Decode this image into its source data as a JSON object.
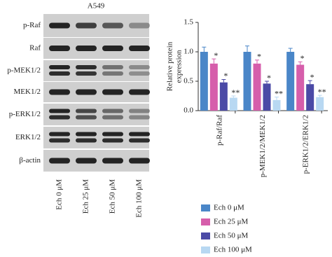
{
  "blot": {
    "title": "A549",
    "rows": [
      "p-Raf",
      "Raf",
      "p-MEK1/2",
      "MEK1/2",
      "p-ERK1/2",
      "ERK1/2",
      "β-actin"
    ],
    "lanes": [
      "Ech 0 μM",
      "Ech 25 μM",
      "Ech 50 μM",
      "Ech 100 μM"
    ]
  },
  "chart_data": {
    "type": "bar",
    "ylabel": [
      "Relative protein",
      "expression"
    ],
    "categories": [
      "p-Raf/Raf",
      "p-MEK1/2/MEK1/2",
      "p-ERK1/2/ERK1/2"
    ],
    "series": [
      {
        "name": "Ech 0 μM",
        "color": "#4a86c8",
        "values": [
          1.0,
          1.0,
          1.0
        ],
        "errors": [
          0.08,
          0.1,
          0.06
        ]
      },
      {
        "name": "Ech 25 μM",
        "color": "#d65eab",
        "values": [
          0.8,
          0.8,
          0.78
        ],
        "errors": [
          0.08,
          0.06,
          0.05
        ],
        "significance": [
          "*",
          "*",
          "*"
        ]
      },
      {
        "name": "Ech 50 μM",
        "color": "#4b4aa6",
        "values": [
          0.48,
          0.46,
          0.45
        ],
        "errors": [
          0.05,
          0.04,
          0.06
        ],
        "significance": [
          "*",
          "*",
          "*"
        ]
      },
      {
        "name": "Ech 100 μM",
        "color": "#b8d8f2",
        "values": [
          0.22,
          0.18,
          0.23
        ],
        "errors": [
          0.03,
          0.05,
          0.03
        ],
        "significance": [
          "**",
          "**",
          "**"
        ]
      }
    ],
    "ylim": [
      0,
      1.5
    ],
    "yticks": [
      {
        "value": 0,
        "label": "0.0"
      },
      0.5,
      {
        "value": 1,
        "label": "1.0"
      },
      1.5
    ]
  }
}
